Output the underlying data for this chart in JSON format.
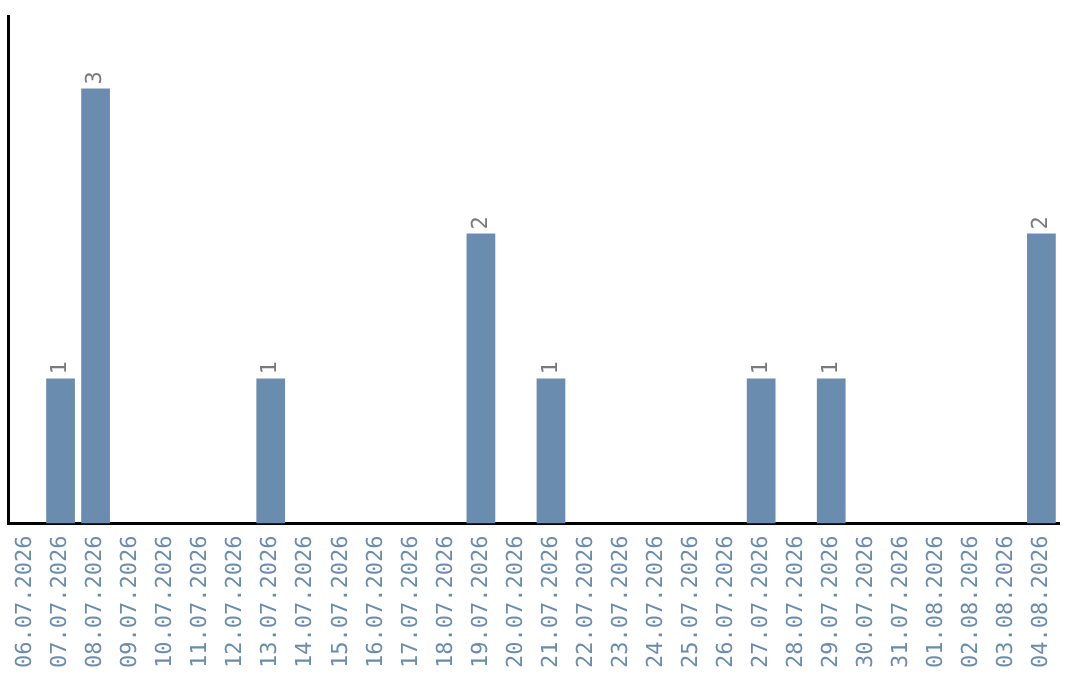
{
  "chart_data": {
    "type": "bar",
    "categories": [
      "06.07.2026",
      "07.07.2026",
      "08.07.2026",
      "09.07.2026",
      "10.07.2026",
      "11.07.2026",
      "12.07.2026",
      "13.07.2026",
      "14.07.2026",
      "15.07.2026",
      "16.07.2026",
      "17.07.2026",
      "18.07.2026",
      "19.07.2026",
      "20.07.2026",
      "21.07.2026",
      "22.07.2026",
      "23.07.2026",
      "24.07.2026",
      "25.07.2026",
      "26.07.2026",
      "27.07.2026",
      "28.07.2026",
      "29.07.2026",
      "30.07.2026",
      "31.07.2026",
      "01.08.2026",
      "02.08.2026",
      "03.08.2026",
      "04.08.2026"
    ],
    "values": [
      0,
      1,
      3,
      0,
      0,
      0,
      0,
      1,
      0,
      0,
      0,
      0,
      0,
      2,
      0,
      1,
      0,
      0,
      0,
      0,
      0,
      1,
      0,
      1,
      0,
      0,
      0,
      0,
      0,
      2
    ],
    "value_labels": [
      null,
      "1",
      "3",
      null,
      null,
      null,
      null,
      "1",
      null,
      null,
      null,
      null,
      null,
      "2",
      null,
      "1",
      null,
      null,
      null,
      null,
      null,
      "1",
      null,
      "1",
      null,
      null,
      null,
      null,
      null,
      "2"
    ],
    "color": "#6a8caf",
    "grid": false,
    "tick_labels": "x"
  }
}
